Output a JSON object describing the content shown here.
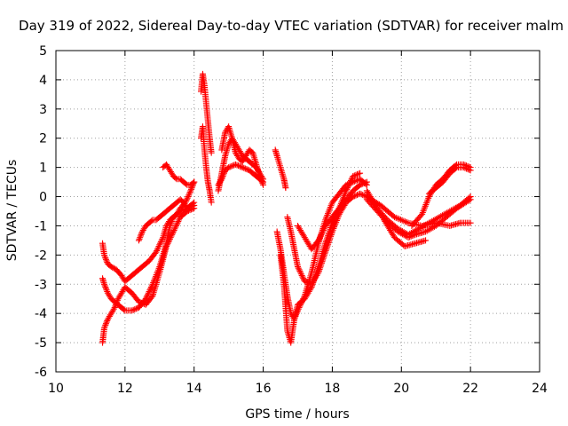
{
  "chart_data": {
    "type": "scatter",
    "title": "Day 319 of 2022, Sidereal Day-to-day VTEC variation (SDTVAR) for receiver malm",
    "xlabel": "GPS time / hours",
    "ylabel": "SDTVAR / TECUs",
    "xlim": [
      10,
      24
    ],
    "ylim": [
      -6,
      5
    ],
    "xticks": [
      "10",
      "12",
      "14",
      "16",
      "18",
      "20",
      "22",
      "24"
    ],
    "yticks": [
      "-6",
      "-5",
      "-4",
      "-3",
      "-2",
      "-1",
      "0",
      "1",
      "2",
      "3",
      "4",
      "5"
    ],
    "grid": true,
    "marker": "plus",
    "color": "#ff0000",
    "series": [
      {
        "x": [
          11.35,
          11.4,
          11.5,
          11.6,
          11.75,
          11.9,
          12.0,
          12.1,
          12.3,
          12.5,
          12.7,
          12.9,
          13.1,
          13.2,
          13.3,
          13.4,
          13.5,
          13.6,
          13.75,
          13.9,
          14.0
        ],
        "y": [
          -1.6,
          -2.0,
          -2.3,
          -2.4,
          -2.5,
          -2.7,
          -2.9,
          -2.8,
          -2.6,
          -2.4,
          -2.2,
          -1.9,
          -1.4,
          -1.0,
          -0.8,
          -0.7,
          -0.6,
          -0.4,
          -0.2,
          0.2,
          0.5
        ]
      },
      {
        "x": [
          11.35,
          11.4,
          11.5,
          11.6,
          11.7,
          11.8,
          11.9,
          12.0,
          12.2,
          12.4,
          12.6,
          12.8,
          13.0,
          13.2,
          13.3,
          13.4,
          13.6,
          13.8,
          14.0
        ],
        "y": [
          -2.8,
          -3.0,
          -3.3,
          -3.5,
          -3.6,
          -3.7,
          -3.8,
          -3.9,
          -3.9,
          -3.8,
          -3.5,
          -3.0,
          -2.4,
          -1.6,
          -1.0,
          -0.7,
          -0.5,
          -0.4,
          -0.3
        ]
      },
      {
        "x": [
          11.35,
          11.4,
          11.5,
          11.6,
          11.7,
          11.8,
          11.9,
          12.0,
          12.2,
          12.4,
          12.6,
          12.8,
          13.0,
          13.2,
          13.4,
          13.6,
          13.8,
          14.0
        ],
        "y": [
          -5.0,
          -4.5,
          -4.2,
          -4.0,
          -3.8,
          -3.5,
          -3.3,
          -3.1,
          -3.3,
          -3.6,
          -3.7,
          -3.4,
          -2.6,
          -1.7,
          -1.2,
          -0.7,
          -0.5,
          -0.4
        ]
      },
      {
        "x": [
          12.4,
          12.5,
          12.6,
          12.7,
          12.8,
          12.9,
          13.0,
          13.1,
          13.2,
          13.3,
          13.4,
          13.5,
          13.6,
          13.7,
          13.8,
          13.9,
          14.0
        ],
        "y": [
          -1.5,
          -1.2,
          -1.0,
          -0.9,
          -0.8,
          -0.8,
          -0.7,
          -0.6,
          -0.5,
          -0.4,
          -0.3,
          -0.2,
          -0.1,
          -0.2,
          -0.4,
          -0.3,
          -0.2
        ]
      },
      {
        "x": [
          13.1,
          13.2,
          13.3,
          13.4,
          13.5,
          13.6,
          13.7,
          13.8,
          13.9,
          14.0
        ],
        "y": [
          1.0,
          1.1,
          0.9,
          0.7,
          0.6,
          0.6,
          0.5,
          0.4,
          0.4,
          0.5
        ]
      },
      {
        "x": [
          14.2,
          14.25,
          14.3,
          14.35,
          14.4,
          14.45,
          14.5
        ],
        "y": [
          3.6,
          4.2,
          3.8,
          3.2,
          2.6,
          2.0,
          1.5
        ]
      },
      {
        "x": [
          14.2,
          14.25,
          14.3,
          14.35,
          14.4,
          14.45,
          14.5
        ],
        "y": [
          2.0,
          2.4,
          1.6,
          1.0,
          0.5,
          0.2,
          -0.2
        ]
      },
      {
        "x": [
          14.7,
          14.8,
          14.9,
          15.0,
          15.1,
          15.2,
          15.3,
          15.4,
          15.5,
          15.6,
          15.7,
          15.8,
          15.9,
          16.0
        ],
        "y": [
          0.2,
          0.8,
          1.4,
          1.8,
          2.0,
          1.8,
          1.6,
          1.4,
          1.3,
          1.2,
          1.1,
          1.0,
          0.8,
          0.6
        ]
      },
      {
        "x": [
          14.8,
          14.9,
          15.0,
          15.1,
          15.2,
          15.3,
          15.4,
          15.5,
          15.6,
          15.7,
          15.8,
          15.9,
          16.0
        ],
        "y": [
          1.6,
          2.2,
          2.4,
          2.0,
          1.5,
          1.3,
          1.2,
          1.4,
          1.6,
          1.5,
          1.1,
          0.7,
          0.4
        ]
      },
      {
        "x": [
          14.7,
          14.8,
          14.9,
          15.0,
          15.2,
          15.4,
          15.6,
          15.8,
          16.0
        ],
        "y": [
          0.4,
          0.6,
          0.9,
          1.0,
          1.1,
          1.0,
          0.9,
          0.7,
          0.5
        ]
      },
      {
        "x": [
          16.35,
          16.4,
          16.5,
          16.6,
          16.65
        ],
        "y": [
          1.6,
          1.4,
          1.0,
          0.6,
          0.3
        ]
      },
      {
        "x": [
          16.4,
          16.5,
          16.6,
          16.7,
          16.8,
          16.9,
          17.0,
          17.2,
          17.4,
          17.6,
          17.8,
          18.0,
          18.2,
          18.4,
          18.6,
          18.8,
          19.0
        ],
        "y": [
          -1.2,
          -1.8,
          -2.6,
          -3.4,
          -4.0,
          -4.2,
          -3.9,
          -3.4,
          -2.6,
          -1.6,
          -0.8,
          -0.2,
          0.1,
          0.4,
          0.5,
          0.6,
          0.4
        ]
      },
      {
        "x": [
          16.5,
          16.6,
          16.7,
          16.8,
          16.9,
          17.0,
          17.2,
          17.4,
          17.6,
          17.8,
          18.0,
          18.2,
          18.4,
          18.6,
          18.8,
          19.0
        ],
        "y": [
          -2.0,
          -3.0,
          -4.6,
          -5.0,
          -4.2,
          -3.7,
          -3.5,
          -3.1,
          -2.4,
          -1.6,
          -0.9,
          -0.4,
          -0.1,
          0.2,
          0.4,
          0.5
        ]
      },
      {
        "x": [
          16.7,
          16.8,
          16.9,
          17.0,
          17.2,
          17.4,
          17.6,
          17.8,
          18.0,
          18.2,
          18.4,
          18.6,
          18.8,
          19.0
        ],
        "y": [
          -0.7,
          -1.2,
          -1.8,
          -2.4,
          -2.9,
          -3.0,
          -2.6,
          -1.9,
          -1.2,
          -0.6,
          -0.2,
          0.0,
          0.1,
          0.0
        ]
      },
      {
        "x": [
          17.0,
          17.2,
          17.4,
          17.6,
          17.8,
          18.0,
          18.2,
          18.4,
          18.6,
          18.8
        ],
        "y": [
          -1.0,
          -1.4,
          -1.8,
          -1.5,
          -1.0,
          -0.7,
          -0.4,
          0.2,
          0.7,
          0.8
        ]
      },
      {
        "x": [
          19.0,
          19.3,
          19.6,
          19.9,
          20.2,
          20.5,
          20.8,
          21.1,
          21.4,
          21.7,
          22.0
        ],
        "y": [
          0.2,
          -0.4,
          -0.8,
          -1.1,
          -1.3,
          -1.1,
          -0.9,
          -0.7,
          -0.5,
          -0.3,
          0.0
        ]
      },
      {
        "x": [
          19.0,
          19.3,
          19.6,
          19.9,
          20.2,
          20.4,
          20.7,
          21.0,
          21.3,
          21.6,
          22.0
        ],
        "y": [
          -0.1,
          -0.5,
          -0.9,
          -1.2,
          -1.4,
          -1.3,
          -1.2,
          -1.0,
          -0.7,
          -0.4,
          -0.1
        ]
      },
      {
        "x": [
          19.5,
          19.8,
          20.1,
          20.4,
          20.7
        ],
        "y": [
          -0.8,
          -1.4,
          -1.7,
          -1.6,
          -1.5
        ]
      },
      {
        "x": [
          19.0,
          19.4,
          19.8,
          20.2,
          20.6,
          21.0,
          21.4,
          21.7,
          22.0
        ],
        "y": [
          0.0,
          -0.3,
          -0.7,
          -0.9,
          -1.0,
          -0.9,
          -1.0,
          -0.9,
          -0.9
        ]
      },
      {
        "x": [
          20.3,
          20.6,
          20.8,
          21.0,
          21.2,
          21.4,
          21.6,
          21.8,
          22.0
        ],
        "y": [
          -1.0,
          -0.6,
          0.0,
          0.4,
          0.6,
          0.9,
          1.1,
          1.1,
          1.0
        ]
      },
      {
        "x": [
          20.8,
          21.0,
          21.2,
          21.4,
          21.6,
          21.8,
          22.0
        ],
        "y": [
          0.1,
          0.3,
          0.5,
          0.8,
          1.0,
          1.0,
          0.9
        ]
      }
    ]
  }
}
